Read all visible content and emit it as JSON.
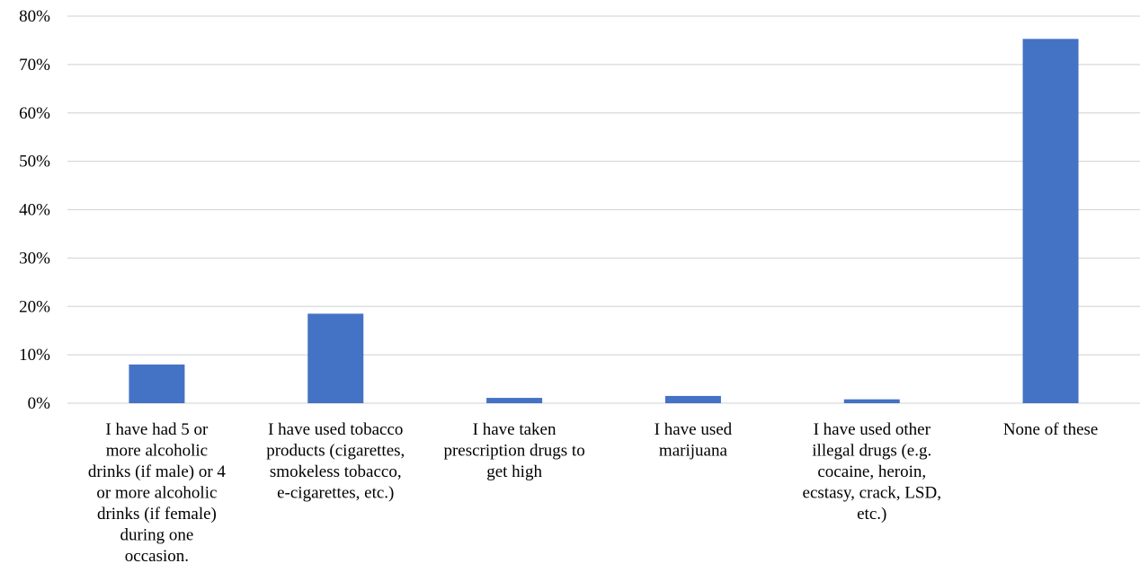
{
  "chart_data": {
    "type": "bar",
    "title": "",
    "xlabel": "",
    "ylabel": "",
    "ylim": [
      0,
      80
    ],
    "y_ticks": [
      "0%",
      "10%",
      "20%",
      "30%",
      "40%",
      "50%",
      "60%",
      "70%",
      "80%"
    ],
    "grid": true,
    "legend": "none",
    "bar_color": "#4472C4",
    "categories": [
      [
        "I have had 5 or",
        "more alcoholic",
        "drinks (if male) or 4",
        "or more alcoholic",
        "drinks (if female)",
        "during one",
        "occasion."
      ],
      [
        "I have used tobacco",
        "products (cigarettes,",
        "smokeless tobacco,",
        "e-cigarettes, etc.)"
      ],
      [
        "I have taken",
        "prescription drugs to",
        "get high"
      ],
      [
        "I have used",
        "marijuana"
      ],
      [
        "I have used other",
        "illegal drugs (e.g.",
        "cocaine, heroin,",
        "ecstasy, crack, LSD,",
        "etc.)"
      ],
      [
        "None of these"
      ]
    ],
    "values": [
      8.0,
      18.5,
      1.1,
      1.5,
      0.8,
      75.3
    ]
  }
}
